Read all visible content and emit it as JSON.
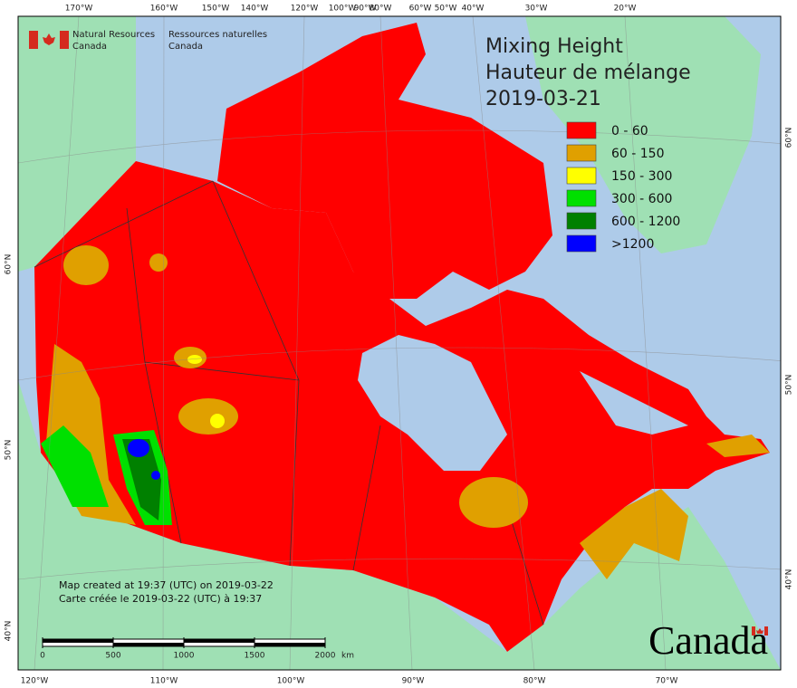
{
  "top_longitude_labels": [
    "170°W",
    "160°W",
    "150°W",
    "140°W",
    "120°W",
    "100°W",
    "90°W",
    "80°W",
    "60°W",
    "50°W",
    "40°W",
    "30°W",
    "20°W"
  ],
  "bottom_longitude_labels": [
    "120°W",
    "110°W",
    "100°W",
    "90°W",
    "80°W",
    "70°W"
  ],
  "left_latitude_labels": [
    "60°N",
    "50°N",
    "40°N"
  ],
  "right_latitude_labels": [
    "60°N",
    "50°N",
    "40°N"
  ],
  "logo": {
    "english": [
      "Natural Resources",
      "Canada"
    ],
    "french": [
      "Ressources naturelles",
      "Canada"
    ]
  },
  "title": [
    "Mixing Height",
    "Hauteur de mélange",
    "2019-03-21"
  ],
  "legend": [
    {
      "label": "0 - 60",
      "color": "#ff0000"
    },
    {
      "label": "60 - 150",
      "color": "#e0a000"
    },
    {
      "label": "150 - 300",
      "color": "#ffff00"
    },
    {
      "label": "300 - 600",
      "color": "#00e000"
    },
    {
      "label": "600 - 1200",
      "color": "#008000"
    },
    {
      "label": ">1200",
      "color": "#0000ff"
    }
  ],
  "footer": [
    "Map created at 19:37 (UTC) on 2019-03-22",
    "Carte créée le 2019-03-22 (UTC) à 19:37"
  ],
  "scale_bar": {
    "ticks": [
      0,
      500,
      1000,
      1500,
      2000
    ],
    "unit": "km"
  },
  "wordmark": "Canada"
}
